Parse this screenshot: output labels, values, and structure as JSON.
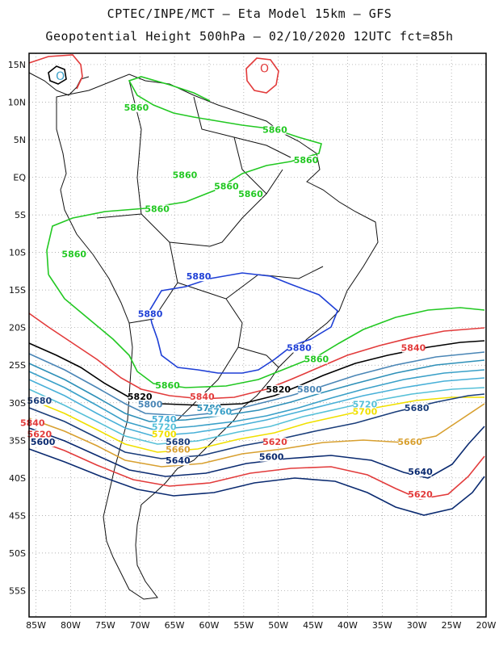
{
  "header": {
    "line1": "CPTEC/INPE/MCT –  Eta Model 15km – GFS",
    "line2": "Geopotential Height 500hPa – 02/10/2020 12UTC fct=85h"
  },
  "axes": {
    "x_ticks": [
      "85W",
      "80W",
      "75W",
      "70W",
      "65W",
      "60W",
      "55W",
      "50W",
      "45W",
      "40W",
      "35W",
      "30W",
      "25W",
      "20W"
    ],
    "y_ticks": [
      "15N",
      "10N",
      "5N",
      "EQ",
      "5S",
      "10S",
      "15S",
      "20S",
      "25S",
      "30S",
      "35S",
      "40S",
      "45S",
      "50S",
      "55S"
    ],
    "gridlines": "dotted"
  },
  "colors": {
    "c5880": "#1e3fd6",
    "c5860": "#22c822",
    "c5840": "#e23b3b",
    "c5820": "#000000",
    "c5800": "#4a86b6",
    "c5780": "#2e90b8",
    "c5760": "#3aa0c8",
    "c5740": "#48b0d8",
    "c5720": "#56c0d8",
    "c5700": "#f0e000",
    "c5680": "#1a3d7a",
    "c5660": "#d8a030",
    "c5640": "#0a2a70",
    "c5620": "#e23b3b",
    "c5600": "#0a2a70"
  },
  "contour_labels": [
    {
      "text": "5880",
      "color": "#1e3fd6",
      "lon": -61.5,
      "lat": -13.5
    },
    {
      "text": "5880",
      "color": "#1e3fd6",
      "lon": -68.5,
      "lat": -18.5
    },
    {
      "text": "5880",
      "color": "#1e3fd6",
      "lon": -47.0,
      "lat": -23.0
    },
    {
      "text": "5860",
      "color": "#22c822",
      "lon": -70.5,
      "lat": 9.0
    },
    {
      "text": "5860",
      "color": "#22c822",
      "lon": -50.5,
      "lat": 6.0
    },
    {
      "text": "5860",
      "color": "#22c822",
      "lon": -46.0,
      "lat": 2.0
    },
    {
      "text": "5860",
      "color": "#22c822",
      "lon": -63.5,
      "lat": 0.0
    },
    {
      "text": "5860",
      "color": "#22c822",
      "lon": -57.5,
      "lat": -1.5
    },
    {
      "text": "5860",
      "color": "#22c822",
      "lon": -54.0,
      "lat": -2.5
    },
    {
      "text": "5860",
      "color": "#22c822",
      "lon": -67.5,
      "lat": -4.5
    },
    {
      "text": "5860",
      "color": "#22c822",
      "lon": -79.5,
      "lat": -10.5
    },
    {
      "text": "5860",
      "color": "#22c822",
      "lon": -44.5,
      "lat": -24.5
    },
    {
      "text": "5860",
      "color": "#22c822",
      "lon": -66.0,
      "lat": -28.0
    },
    {
      "text": "5840",
      "color": "#e23b3b",
      "lon": -30.5,
      "lat": -23.0
    },
    {
      "text": "5840",
      "color": "#e23b3b",
      "lon": -61.0,
      "lat": -29.5
    },
    {
      "text": "5840",
      "color": "#e23b3b",
      "lon": -85.5,
      "lat": -33.0
    },
    {
      "text": "5820",
      "color": "#000000",
      "lon": -70.0,
      "lat": -29.5
    },
    {
      "text": "5820",
      "color": "#000000",
      "lon": -50.0,
      "lat": -28.5
    },
    {
      "text": "5800",
      "color": "#4a86b6",
      "lon": -45.5,
      "lat": -28.5
    },
    {
      "text": "5800",
      "color": "#4a86b6",
      "lon": -68.5,
      "lat": -30.5
    },
    {
      "text": "5780",
      "color": "#2e90b8",
      "lon": -60.0,
      "lat": -31.0
    },
    {
      "text": "5760",
      "color": "#3aa0c8",
      "lon": -58.5,
      "lat": -31.5
    },
    {
      "text": "5740",
      "color": "#48b0d8",
      "lon": -66.5,
      "lat": -32.5
    },
    {
      "text": "5720",
      "color": "#56c0d8",
      "lon": -66.5,
      "lat": -33.5
    },
    {
      "text": "5720",
      "color": "#56c0d8",
      "lon": -37.5,
      "lat": -30.5
    },
    {
      "text": "5700",
      "color": "#f0e000",
      "lon": -66.5,
      "lat": -34.5
    },
    {
      "text": "5700",
      "color": "#f0e000",
      "lon": -37.5,
      "lat": -31.5
    },
    {
      "text": "5680",
      "color": "#1a3d7a",
      "lon": -84.5,
      "lat": -30.0
    },
    {
      "text": "5680",
      "color": "#1a3d7a",
      "lon": -64.5,
      "lat": -35.5
    },
    {
      "text": "5680",
      "color": "#1a3d7a",
      "lon": -30.0,
      "lat": -31.0
    },
    {
      "text": "5660",
      "color": "#d8a030",
      "lon": -64.5,
      "lat": -36.5
    },
    {
      "text": "5660",
      "color": "#d8a030",
      "lon": -31.0,
      "lat": -35.5
    },
    {
      "text": "5640",
      "color": "#0a2a70",
      "lon": -64.5,
      "lat": -38.0
    },
    {
      "text": "5640",
      "color": "#0a2a70",
      "lon": -29.5,
      "lat": -39.5
    },
    {
      "text": "5620",
      "color": "#e23b3b",
      "lon": -84.5,
      "lat": -34.5
    },
    {
      "text": "5620",
      "color": "#e23b3b",
      "lon": -50.5,
      "lat": -35.5
    },
    {
      "text": "5620",
      "color": "#e23b3b",
      "lon": -29.5,
      "lat": -42.5
    },
    {
      "text": "5600",
      "color": "#0a2a70",
      "lon": -84.0,
      "lat": -35.5
    },
    {
      "text": "5600",
      "color": "#0a2a70",
      "lon": -51.0,
      "lat": -37.5
    }
  ],
  "symbols": [
    {
      "text": "O",
      "color": "#e23b3b",
      "lon": -52.0,
      "lat": 14.5
    },
    {
      "text": "O",
      "color": "#3aa0c8",
      "lon": -81.5,
      "lat": 13.5
    }
  ]
}
